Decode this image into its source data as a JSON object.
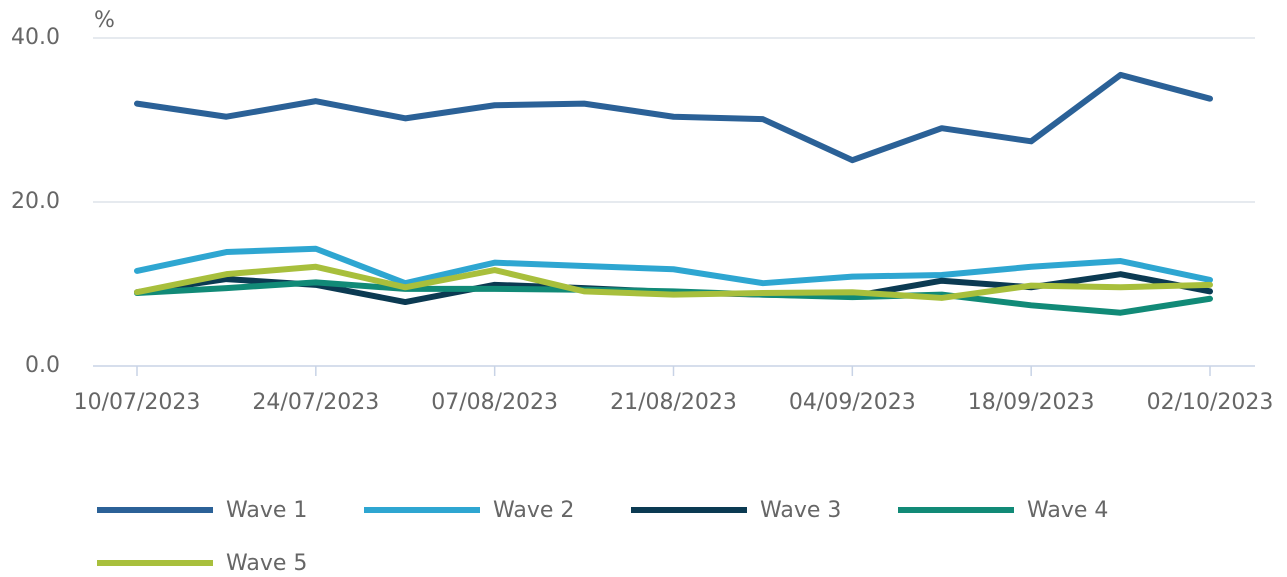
{
  "chart_data": {
    "type": "line",
    "y_label": "%",
    "categories": [
      "10/07/2023",
      null,
      "24/07/2023",
      null,
      "07/08/2023",
      null,
      "21/08/2023",
      null,
      "04/09/2023",
      null,
      "18/09/2023",
      null,
      "02/10/2023"
    ],
    "series": [
      {
        "name": "Wave 1",
        "color": "#2b6197",
        "values": [
          32.0,
          30.4,
          32.3,
          30.2,
          31.8,
          32.0,
          30.4,
          30.1,
          25.1,
          29.0,
          27.4,
          35.5,
          32.6
        ]
      },
      {
        "name": "Wave 2",
        "color": "#2ea6d1",
        "values": [
          11.6,
          13.9,
          14.3,
          10.1,
          12.6,
          12.2,
          11.8,
          10.1,
          10.9,
          11.1,
          12.1,
          12.8,
          10.5
        ]
      },
      {
        "name": "Wave 3",
        "color": "#0b3a52",
        "values": [
          9.0,
          10.6,
          9.9,
          7.8,
          9.9,
          9.5,
          9.0,
          8.7,
          8.5,
          10.4,
          9.6,
          11.2,
          9.1
        ]
      },
      {
        "name": "Wave 4",
        "color": "#118a77",
        "values": [
          8.9,
          9.5,
          10.2,
          9.4,
          9.4,
          9.3,
          9.1,
          8.7,
          8.4,
          8.7,
          7.4,
          6.5,
          8.2
        ]
      },
      {
        "name": "Wave 5",
        "color": "#a8bf3c",
        "values": [
          9.0,
          11.2,
          12.1,
          9.6,
          11.7,
          9.1,
          8.7,
          8.9,
          9.0,
          8.3,
          9.8,
          9.6,
          9.9
        ]
      }
    ],
    "ylim": [
      0,
      40
    ],
    "yticks": [
      {
        "value": 0,
        "label": "0.0"
      },
      {
        "value": 20,
        "label": "20.0"
      },
      {
        "value": 40,
        "label": "40.0"
      }
    ],
    "grid": true
  }
}
